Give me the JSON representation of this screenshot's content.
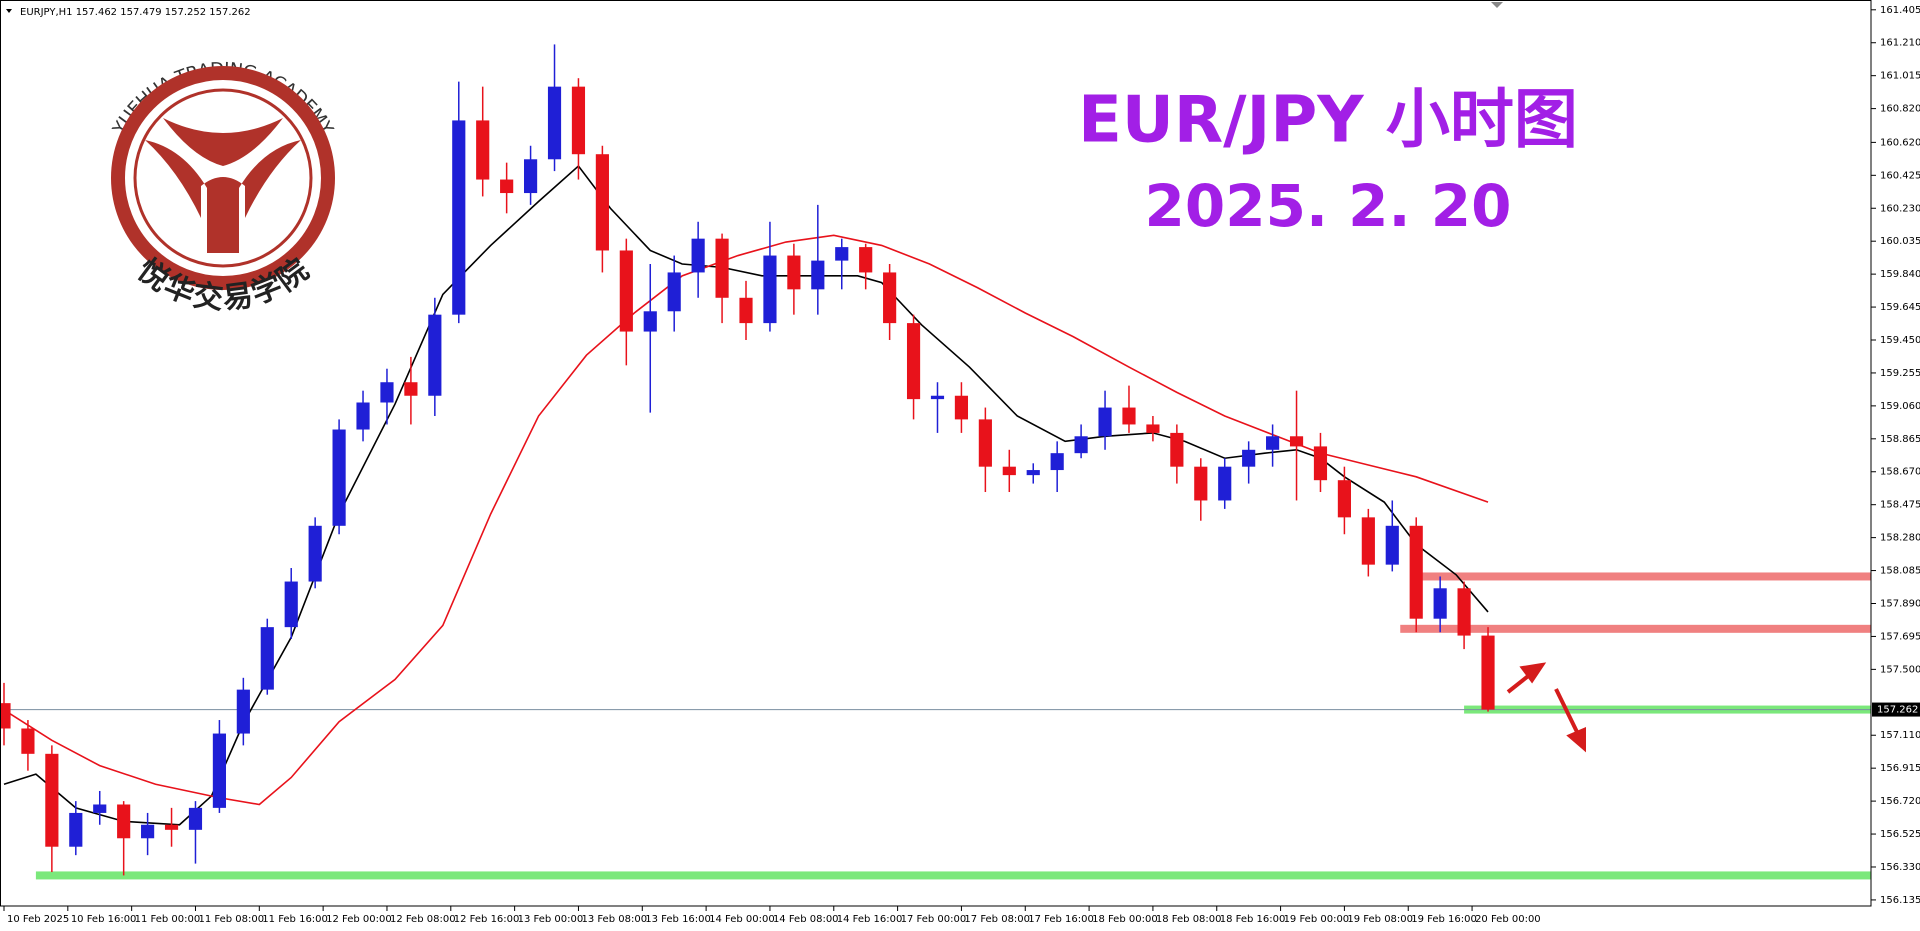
{
  "header": "EURJPY,H1  157.462 157.479 157.252 157.262",
  "logo": {
    "arc_text": "YUEHUA TRADING ACADEMY",
    "name": "悦华交易学院"
  },
  "title": "EUR/JPY 小时图",
  "date": "2025. 2. 20",
  "chart_data": {
    "type": "candlestick",
    "up_color": "#1f1fd6",
    "down_color": "#e8121b",
    "xlim": [
      -0.5,
      234
    ],
    "ylim": [
      156.099,
      161.463
    ],
    "xticks": [
      {
        "value": 0,
        "label": "10 Feb 2025"
      },
      {
        "value": 8,
        "label": "10 Feb 16:00"
      },
      {
        "value": 16,
        "label": "11 Feb 00:00"
      },
      {
        "value": 24,
        "label": "11 Feb 08:00"
      },
      {
        "value": 32,
        "label": "11 Feb 16:00"
      },
      {
        "value": 40,
        "label": "12 Feb 00:00"
      },
      {
        "value": 48,
        "label": "12 Feb 08:00"
      },
      {
        "value": 56,
        "label": "12 Feb 16:00"
      },
      {
        "value": 64,
        "label": "13 Feb 00:00"
      },
      {
        "value": 72,
        "label": "13 Feb 08:00"
      },
      {
        "value": 80,
        "label": "13 Feb 16:00"
      },
      {
        "value": 88,
        "label": "14 Feb 00:00"
      },
      {
        "value": 96,
        "label": "14 Feb 08:00"
      },
      {
        "value": 104,
        "label": "14 Feb 16:00"
      },
      {
        "value": 112,
        "label": "17 Feb 00:00"
      },
      {
        "value": 120,
        "label": "17 Feb 08:00"
      },
      {
        "value": 128,
        "label": "17 Feb 16:00"
      },
      {
        "value": 136,
        "label": "18 Feb 00:00"
      },
      {
        "value": 144,
        "label": "18 Feb 08:00"
      },
      {
        "value": 152,
        "label": "18 Feb 16:00"
      },
      {
        "value": 160,
        "label": "19 Feb 00:00"
      },
      {
        "value": 168,
        "label": "19 Feb 08:00"
      },
      {
        "value": 176,
        "label": "19 Feb 16:00"
      },
      {
        "value": 184,
        "label": "20 Feb 00:00"
      }
    ],
    "yticks": [
      161.405,
      {
        "value": 161.21,
        "label": "161.210"
      },
      161.015,
      {
        "value": 160.82,
        "label": "160.820"
      },
      {
        "value": 160.62,
        "label": "160.620"
      },
      160.425,
      {
        "value": 160.23,
        "label": "160.230"
      },
      160.035,
      {
        "value": 159.84,
        "label": "159.840"
      },
      159.645,
      {
        "value": 159.45,
        "label": "159.450"
      },
      159.255,
      {
        "value": 159.06,
        "label": "159.060"
      },
      158.865,
      {
        "value": 158.67,
        "label": "158.670"
      },
      158.475,
      {
        "value": 158.28,
        "label": "158.280"
      },
      158.085,
      {
        "value": 157.89,
        "label": "157.890"
      },
      157.695,
      {
        "value": 157.5,
        "label": "157.500"
      },
      {
        "value": 157.11,
        "label": "157.110"
      },
      156.915,
      {
        "value": 156.72,
        "label": "156.720"
      },
      156.525,
      {
        "value": 156.33,
        "label": "156.330"
      },
      156.135
    ],
    "last_price": 157.262,
    "candles": {
      "x": [
        0,
        3,
        6,
        9,
        12,
        15,
        18,
        21,
        24,
        27,
        30,
        33,
        36,
        39,
        42,
        45,
        48,
        51,
        54,
        57,
        60,
        63,
        66,
        69,
        72,
        75,
        78,
        81,
        84,
        87,
        90,
        93,
        96,
        99,
        102,
        105,
        108,
        111,
        114,
        117,
        120,
        123,
        126,
        129,
        132,
        135,
        138,
        141,
        144,
        147,
        150,
        153,
        156,
        159,
        162,
        165,
        168,
        171,
        174,
        177,
        180,
        183,
        186
      ],
      "open": [
        157.3,
        157.15,
        157.0,
        156.45,
        156.65,
        156.7,
        156.5,
        156.58,
        156.55,
        156.68,
        157.12,
        157.38,
        157.75,
        158.02,
        158.35,
        158.92,
        159.08,
        159.2,
        159.12,
        159.6,
        160.75,
        160.4,
        160.32,
        160.52,
        160.95,
        160.55,
        159.98,
        159.5,
        159.62,
        159.85,
        160.05,
        159.7,
        159.55,
        159.95,
        159.75,
        159.92,
        160.0,
        159.85,
        159.55,
        159.1,
        159.12,
        158.98,
        158.7,
        158.65,
        158.68,
        158.78,
        158.88,
        159.05,
        158.95,
        158.9,
        158.7,
        158.5,
        158.7,
        158.8,
        158.88,
        158.82,
        158.62,
        158.4,
        158.12,
        158.35,
        157.8,
        157.98,
        157.7
      ],
      "high": [
        157.42,
        157.2,
        157.05,
        156.72,
        156.78,
        156.72,
        156.65,
        156.68,
        156.72,
        157.2,
        157.45,
        157.8,
        158.1,
        158.4,
        158.98,
        159.15,
        159.28,
        159.35,
        159.7,
        160.98,
        160.95,
        160.5,
        160.6,
        161.2,
        161.0,
        160.6,
        160.05,
        159.9,
        159.95,
        160.15,
        160.08,
        159.8,
        160.15,
        160.02,
        160.25,
        160.05,
        160.02,
        159.9,
        159.6,
        159.2,
        159.2,
        159.05,
        158.8,
        158.72,
        158.85,
        158.95,
        159.15,
        159.18,
        159.0,
        158.95,
        158.75,
        158.75,
        158.85,
        158.95,
        159.15,
        158.9,
        158.7,
        158.45,
        158.5,
        158.4,
        158.05,
        158.02,
        157.75
      ],
      "low": [
        157.05,
        156.9,
        156.3,
        156.4,
        156.58,
        156.28,
        156.4,
        156.45,
        156.35,
        156.65,
        157.05,
        157.35,
        157.68,
        157.98,
        158.3,
        158.85,
        158.95,
        158.95,
        159.0,
        159.55,
        160.3,
        160.2,
        160.25,
        160.45,
        160.4,
        159.85,
        159.3,
        159.02,
        159.5,
        159.7,
        159.55,
        159.45,
        159.5,
        159.6,
        159.6,
        159.75,
        159.75,
        159.45,
        158.98,
        158.9,
        158.9,
        158.55,
        158.55,
        158.6,
        158.55,
        158.75,
        158.8,
        158.9,
        158.85,
        158.6,
        158.38,
        158.45,
        158.6,
        158.7,
        158.5,
        158.55,
        158.3,
        158.05,
        158.08,
        157.72,
        157.72,
        157.62,
        157.25
      ],
      "close": [
        157.15,
        157.0,
        156.45,
        156.65,
        156.7,
        156.5,
        156.58,
        156.55,
        156.68,
        157.12,
        157.38,
        157.75,
        158.02,
        158.35,
        158.92,
        159.08,
        159.2,
        159.12,
        159.6,
        160.75,
        160.4,
        160.32,
        160.52,
        160.95,
        160.55,
        159.98,
        159.5,
        159.62,
        159.85,
        160.05,
        159.7,
        159.55,
        159.95,
        159.75,
        159.92,
        160.0,
        159.85,
        159.55,
        159.1,
        159.12,
        158.98,
        158.7,
        158.65,
        158.68,
        158.78,
        158.88,
        159.05,
        158.95,
        158.9,
        158.7,
        158.5,
        158.7,
        158.8,
        158.88,
        158.82,
        158.62,
        158.4,
        158.12,
        158.35,
        157.8,
        157.98,
        157.7,
        157.262
      ]
    },
    "ma": [
      {
        "color": "#000000",
        "x": [
          0,
          4,
          9,
          15,
          22,
          26,
          30,
          36,
          42,
          49,
          55,
          61,
          67,
          72,
          76,
          81,
          85,
          90,
          95,
          101,
          107,
          110,
          115,
          121,
          127,
          133,
          138,
          144,
          148,
          153,
          158,
          162,
          165,
          168,
          173,
          177,
          182,
          186
        ],
        "values": [
          156.82,
          156.88,
          156.68,
          156.6,
          156.58,
          156.75,
          157.18,
          157.69,
          158.42,
          159.07,
          159.72,
          160.01,
          160.27,
          160.48,
          160.23,
          159.98,
          159.9,
          159.88,
          159.83,
          159.83,
          159.83,
          159.79,
          159.54,
          159.29,
          159.0,
          158.85,
          158.88,
          158.9,
          158.85,
          158.75,
          158.78,
          158.8,
          158.75,
          158.64,
          158.49,
          158.24,
          158.06,
          157.84
        ]
      },
      {
        "color": "#e8121b",
        "x": [
          0,
          6,
          12,
          19,
          27,
          32,
          36,
          42,
          49,
          55,
          61,
          67,
          73,
          79,
          85,
          92,
          98,
          104,
          110,
          116,
          122,
          128,
          134,
          141,
          147,
          153,
          159,
          165,
          171,
          177,
          186
        ],
        "values": [
          157.26,
          157.08,
          156.93,
          156.82,
          156.74,
          156.7,
          156.86,
          157.19,
          157.44,
          157.76,
          158.42,
          159.0,
          159.36,
          159.61,
          159.83,
          159.95,
          160.03,
          160.07,
          160.01,
          159.9,
          159.76,
          159.61,
          159.47,
          159.29,
          159.14,
          159.0,
          158.89,
          158.78,
          158.71,
          158.64,
          158.49
        ]
      }
    ],
    "levels": [
      {
        "value": 158.05,
        "start": 177,
        "color": "#f08080"
      },
      {
        "value": 157.74,
        "start": 175,
        "color": "#f08080"
      },
      {
        "value": 157.262,
        "start": 183,
        "color": "#7be87b"
      },
      {
        "value": 156.28,
        "start": 4,
        "color": "#7be87b"
      }
    ]
  }
}
